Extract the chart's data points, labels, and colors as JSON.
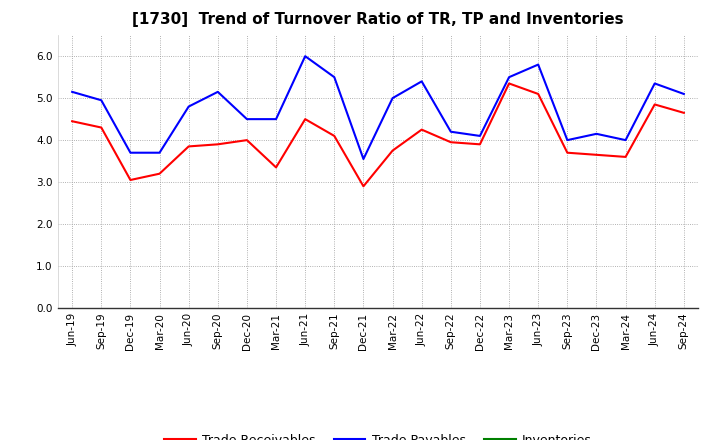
{
  "title": "[1730]  Trend of Turnover Ratio of TR, TP and Inventories",
  "x_labels": [
    "Jun-19",
    "Sep-19",
    "Dec-19",
    "Mar-20",
    "Jun-20",
    "Sep-20",
    "Dec-20",
    "Mar-21",
    "Jun-21",
    "Sep-21",
    "Dec-21",
    "Mar-22",
    "Jun-22",
    "Sep-22",
    "Dec-22",
    "Mar-23",
    "Jun-23",
    "Sep-23",
    "Dec-23",
    "Mar-24",
    "Jun-24",
    "Sep-24"
  ],
  "trade_receivables": [
    4.45,
    4.3,
    3.05,
    3.2,
    3.85,
    3.9,
    4.0,
    3.35,
    4.5,
    4.1,
    2.9,
    3.75,
    4.25,
    3.95,
    3.9,
    5.35,
    5.1,
    3.7,
    3.65,
    3.6,
    4.85,
    4.65
  ],
  "trade_payables": [
    5.15,
    4.95,
    3.7,
    3.7,
    4.8,
    5.15,
    4.5,
    4.5,
    6.0,
    5.5,
    3.55,
    5.0,
    5.4,
    4.2,
    4.1,
    5.5,
    5.8,
    4.0,
    4.15,
    4.0,
    5.35,
    5.1
  ],
  "inventories": [
    null,
    null,
    null,
    null,
    null,
    null,
    null,
    null,
    null,
    null,
    null,
    null,
    null,
    null,
    null,
    null,
    null,
    null,
    null,
    null,
    null,
    null
  ],
  "tr_color": "#ff0000",
  "tp_color": "#0000ff",
  "inv_color": "#008000",
  "ylim": [
    0.0,
    6.5
  ],
  "yticks": [
    0.0,
    1.0,
    2.0,
    3.0,
    4.0,
    5.0,
    6.0
  ],
  "ytick_labels": [
    "0.0",
    "1.0",
    "2.0",
    "3.0",
    "4.0",
    "5.0",
    "6.0"
  ],
  "legend_labels": [
    "Trade Receivables",
    "Trade Payables",
    "Inventories"
  ],
  "background_color": "#ffffff",
  "plot_bg_color": "#ffffff",
  "grid_color": "#999999",
  "line_width": 1.5,
  "title_fontsize": 11,
  "tick_fontsize": 7.5,
  "legend_fontsize": 9
}
